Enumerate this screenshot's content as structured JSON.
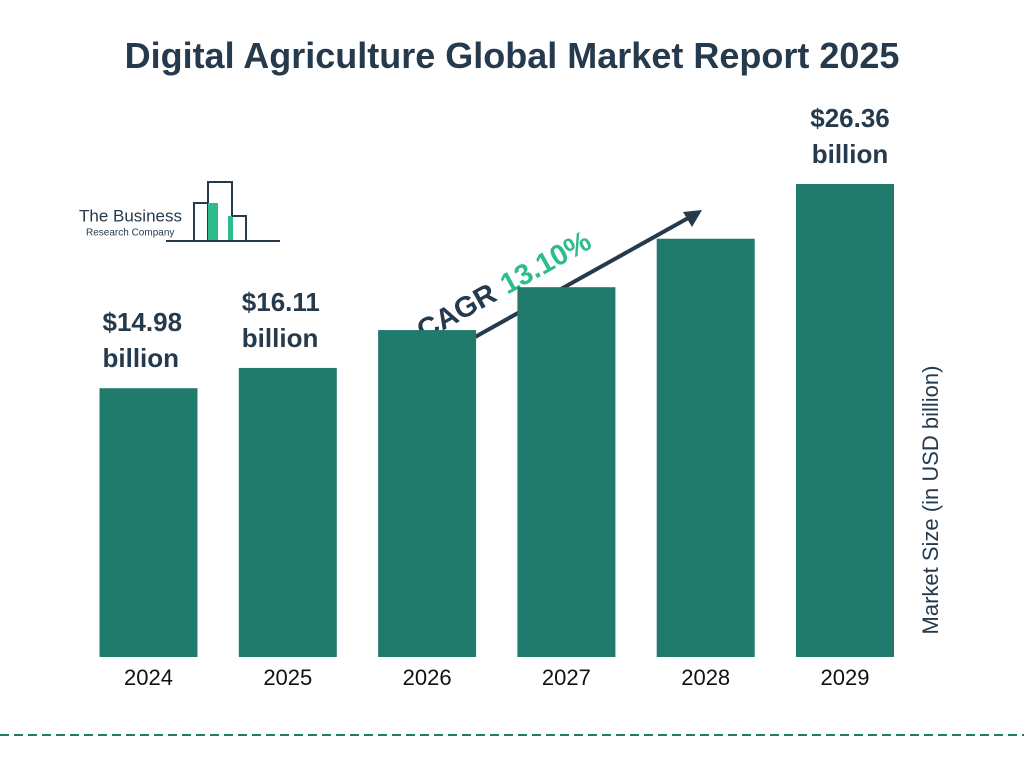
{
  "chart_data": {
    "type": "bar",
    "title": "Digital Agriculture Global Market Report 2025",
    "categories": [
      "2024",
      "2025",
      "2026",
      "2027",
      "2028",
      "2029"
    ],
    "values": [
      14.98,
      16.11,
      18.22,
      20.61,
      23.31,
      26.36
    ],
    "value_labels": [
      "$14.98 billion",
      "$16.11 billion",
      null,
      null,
      null,
      "$26.36 billion"
    ],
    "color": "#217b6d",
    "y_axis_label": "Market Size (in USD billion)",
    "cagr_label": "CAGR",
    "cagr_value": "13.10%",
    "logo": {
      "line1": "The Business",
      "line2": "Research Company"
    }
  }
}
